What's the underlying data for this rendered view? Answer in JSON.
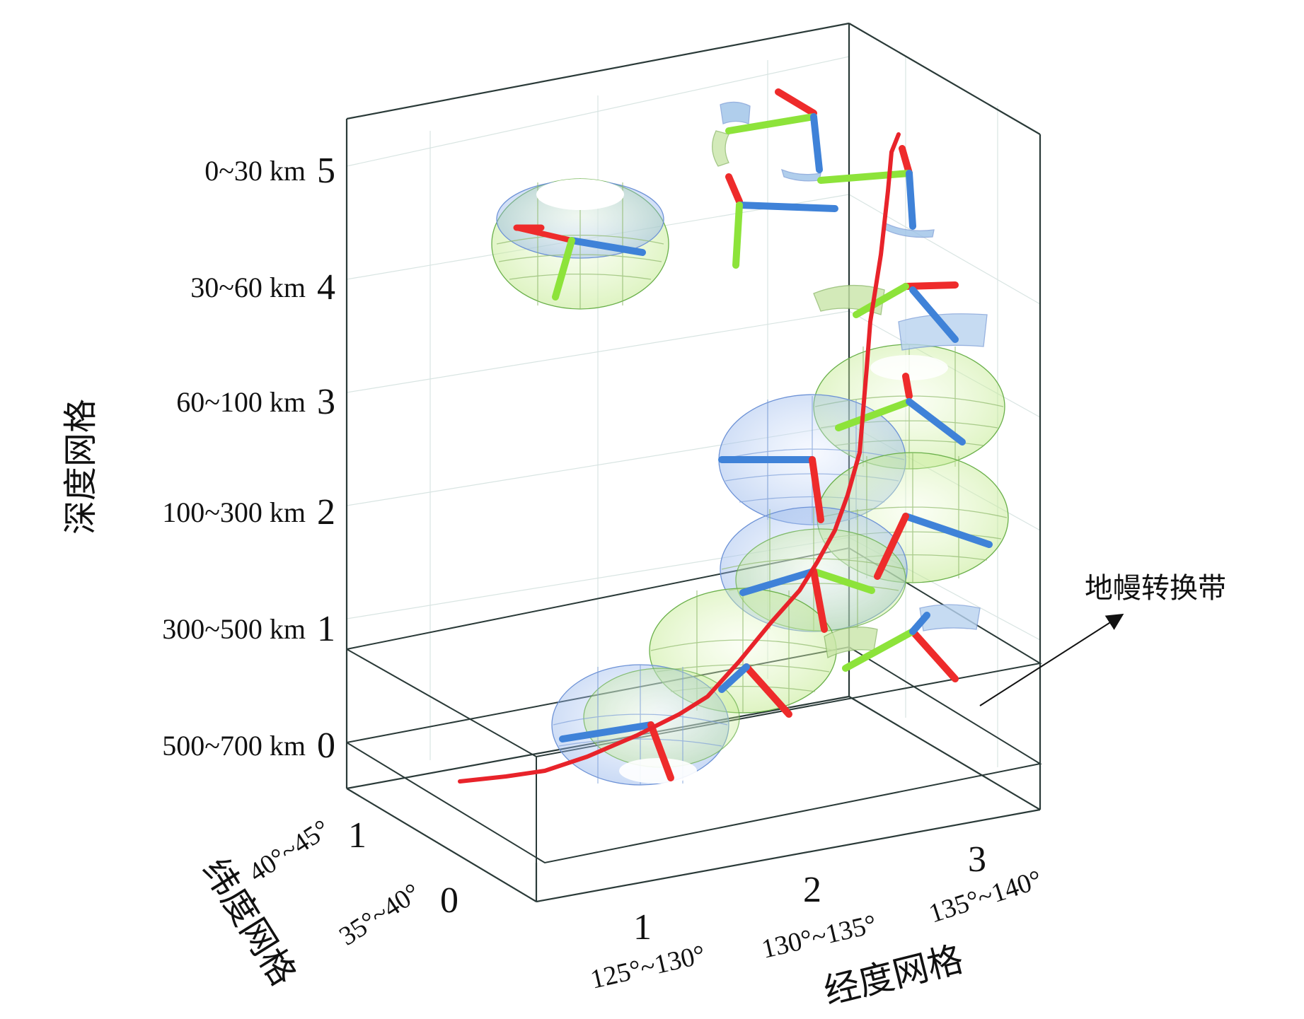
{
  "depth_axis": {
    "title": "深度网格",
    "ticks": [
      {
        "range": "0~30 km",
        "index": "5"
      },
      {
        "range": "30~60 km",
        "index": "4"
      },
      {
        "range": "60~100 km",
        "index": "3"
      },
      {
        "range": "100~300 km",
        "index": "2"
      },
      {
        "range": "300~500 km",
        "index": "1"
      },
      {
        "range": "500~700 km",
        "index": "0"
      }
    ]
  },
  "latitude_axis": {
    "title": "纬度网格",
    "ticks": [
      {
        "range": "40°~45°",
        "index": "1"
      },
      {
        "range": "35°~40°",
        "index": "0"
      }
    ]
  },
  "longitude_axis": {
    "title": "经度网格",
    "ticks": [
      {
        "range": "125°~130°",
        "index": "1"
      },
      {
        "range": "130°~135°",
        "index": "2"
      },
      {
        "range": "135°~140°",
        "index": "3"
      }
    ]
  },
  "annotation": {
    "text": "地幔转换带"
  },
  "colors": {
    "slab_curve": "#e8232a",
    "axis_red": "#ee2b2b",
    "axis_green": "#8de33a",
    "axis_blue": "#3f82d8",
    "sphere_blue": "#7fa6e6",
    "sphere_green": "#b7e67a",
    "box_line": "#2a3a38"
  }
}
